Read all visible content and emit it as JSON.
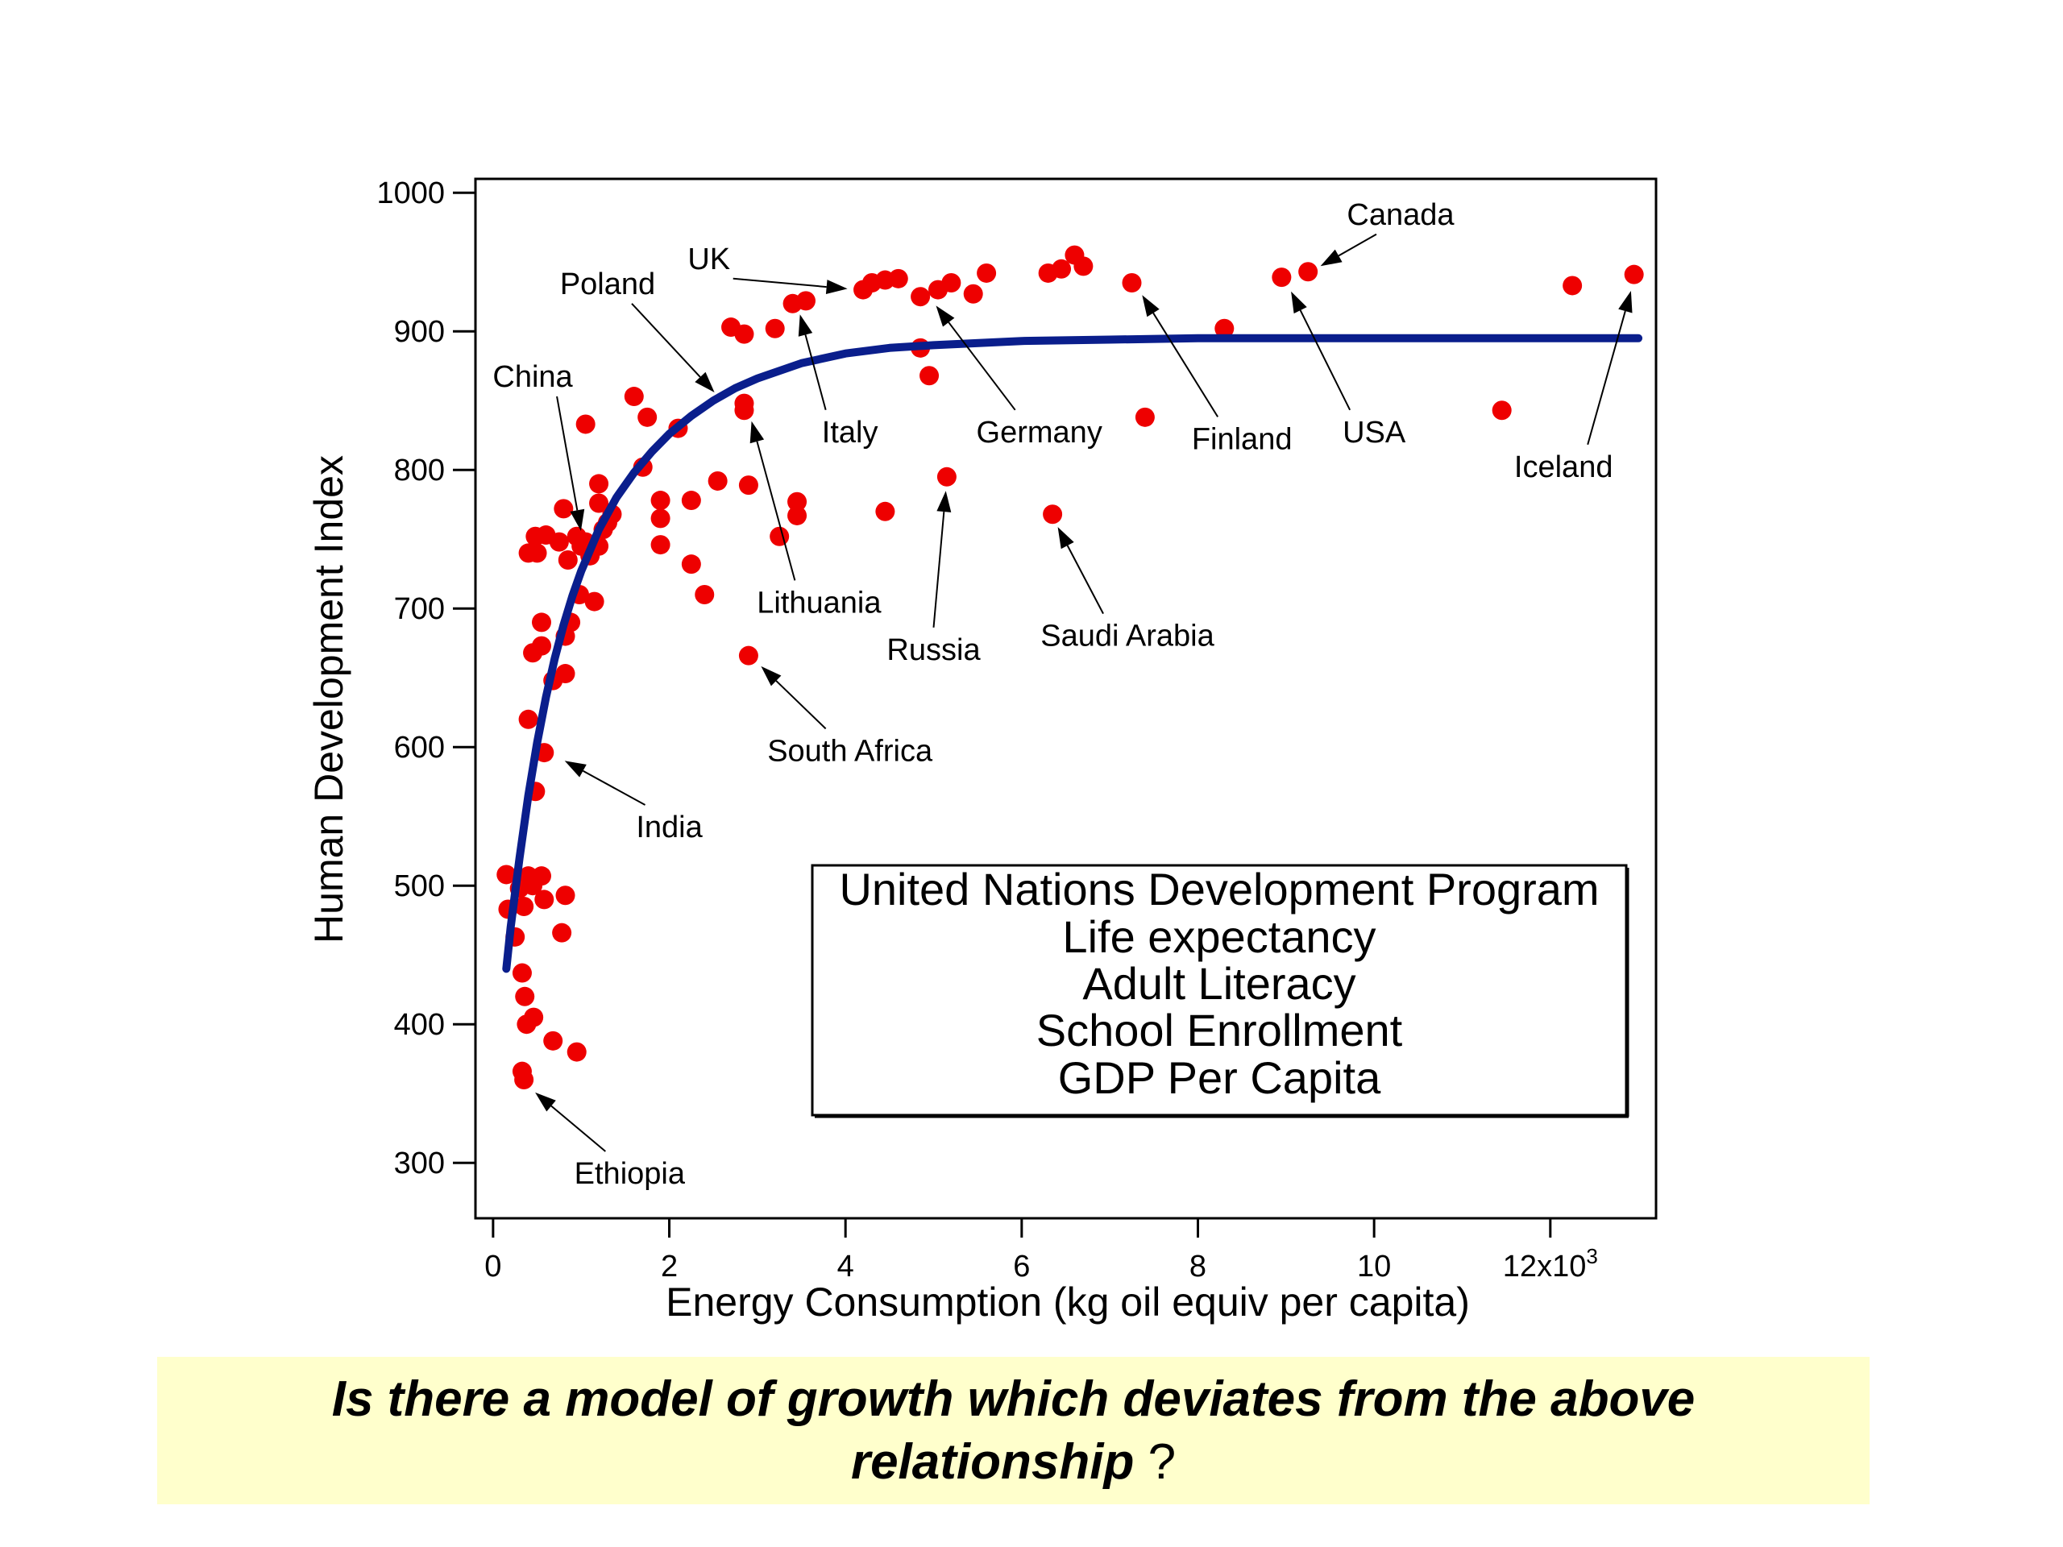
{
  "chart_data": {
    "type": "scatter",
    "xlabel": "Energy Consumption (kg oil equiv per capita)",
    "ylabel": "Human Development Index",
    "xlim": [
      -0.2,
      13.2
    ],
    "ylim": [
      260,
      1010
    ],
    "x_ticks": [
      {
        "value": 0,
        "label": "0"
      },
      {
        "value": 2,
        "label": "2"
      },
      {
        "value": 4,
        "label": "4"
      },
      {
        "value": 6,
        "label": "6"
      },
      {
        "value": 8,
        "label": "8"
      },
      {
        "value": 10,
        "label": "10"
      },
      {
        "value": 12,
        "label": "12x10",
        "exponent": "3"
      }
    ],
    "y_ticks": [
      300,
      400,
      500,
      600,
      700,
      800,
      900,
      1000
    ],
    "point_color": "#ee0000",
    "curve_color": "#0a1e8c",
    "points": [
      [
        0.15,
        508
      ],
      [
        0.17,
        483
      ],
      [
        0.25,
        463
      ],
      [
        0.3,
        498
      ],
      [
        0.35,
        485
      ],
      [
        0.4,
        507
      ],
      [
        0.45,
        500
      ],
      [
        0.55,
        507
      ],
      [
        0.58,
        490
      ],
      [
        0.82,
        493
      ],
      [
        0.78,
        466
      ],
      [
        0.33,
        437
      ],
      [
        0.36,
        420
      ],
      [
        0.38,
        400
      ],
      [
        0.46,
        405
      ],
      [
        0.68,
        388
      ],
      [
        0.95,
        380
      ],
      [
        0.33,
        366
      ],
      [
        0.35,
        360
      ],
      [
        0.4,
        620
      ],
      [
        0.48,
        568
      ],
      [
        0.58,
        596
      ],
      [
        0.45,
        668
      ],
      [
        0.55,
        673
      ],
      [
        0.55,
        690
      ],
      [
        0.68,
        648
      ],
      [
        0.82,
        653
      ],
      [
        0.82,
        680
      ],
      [
        0.88,
        690
      ],
      [
        0.4,
        740
      ],
      [
        0.48,
        752
      ],
      [
        0.5,
        740
      ],
      [
        0.6,
        753
      ],
      [
        0.75,
        748
      ],
      [
        0.8,
        772
      ],
      [
        0.95,
        752
      ],
      [
        1.0,
        745
      ],
      [
        1.05,
        748
      ],
      [
        1.1,
        738
      ],
      [
        1.2,
        745
      ],
      [
        1.25,
        757
      ],
      [
        1.3,
        762
      ],
      [
        1.35,
        768
      ],
      [
        1.2,
        776
      ],
      [
        1.2,
        790
      ],
      [
        0.85,
        735
      ],
      [
        0.98,
        710
      ],
      [
        1.15,
        705
      ],
      [
        1.05,
        833
      ],
      [
        1.6,
        853
      ],
      [
        1.75,
        838
      ],
      [
        1.7,
        802
      ],
      [
        1.9,
        778
      ],
      [
        1.9,
        765
      ],
      [
        1.9,
        746
      ],
      [
        2.1,
        830
      ],
      [
        2.25,
        778
      ],
      [
        2.25,
        732
      ],
      [
        2.4,
        710
      ],
      [
        2.55,
        792
      ],
      [
        2.7,
        903
      ],
      [
        2.85,
        898
      ],
      [
        3.2,
        902
      ],
      [
        3.4,
        920
      ],
      [
        3.55,
        922
      ],
      [
        2.85,
        848
      ],
      [
        2.85,
        843
      ],
      [
        2.9,
        789
      ],
      [
        3.25,
        752
      ],
      [
        3.45,
        777
      ],
      [
        3.45,
        767
      ],
      [
        2.9,
        666
      ],
      [
        4.2,
        930
      ],
      [
        4.3,
        935
      ],
      [
        4.45,
        937
      ],
      [
        4.6,
        938
      ],
      [
        4.85,
        925
      ],
      [
        5.05,
        930
      ],
      [
        5.2,
        935
      ],
      [
        5.45,
        927
      ],
      [
        5.6,
        942
      ],
      [
        4.85,
        888
      ],
      [
        4.95,
        868
      ],
      [
        4.45,
        770
      ],
      [
        5.15,
        795
      ],
      [
        6.3,
        942
      ],
      [
        6.45,
        945
      ],
      [
        6.6,
        955
      ],
      [
        6.7,
        947
      ],
      [
        7.25,
        935
      ],
      [
        7.4,
        838
      ],
      [
        8.3,
        902
      ],
      [
        6.35,
        768
      ],
      [
        8.95,
        939
      ],
      [
        9.25,
        943
      ],
      [
        11.45,
        843
      ],
      [
        12.25,
        933
      ],
      [
        12.95,
        941
      ]
    ],
    "curve": [
      [
        0.15,
        440
      ],
      [
        0.2,
        470
      ],
      [
        0.3,
        520
      ],
      [
        0.4,
        565
      ],
      [
        0.5,
        603
      ],
      [
        0.6,
        636
      ],
      [
        0.7,
        664
      ],
      [
        0.8,
        688
      ],
      [
        0.9,
        709
      ],
      [
        1.0,
        727
      ],
      [
        1.2,
        757
      ],
      [
        1.4,
        780
      ],
      [
        1.6,
        798
      ],
      [
        1.8,
        813
      ],
      [
        2.0,
        826
      ],
      [
        2.25,
        839
      ],
      [
        2.5,
        850
      ],
      [
        2.75,
        859
      ],
      [
        3.0,
        866
      ],
      [
        3.5,
        877
      ],
      [
        4.0,
        884
      ],
      [
        4.5,
        888
      ],
      [
        5.0,
        890
      ],
      [
        6.0,
        893
      ],
      [
        7.0,
        894
      ],
      [
        8.0,
        895
      ],
      [
        9.0,
        895
      ],
      [
        10.0,
        895
      ],
      [
        11.0,
        895
      ],
      [
        12.0,
        895
      ],
      [
        13.0,
        895
      ]
    ],
    "annotations": [
      {
        "label": "Canada",
        "target": [
          9.28,
          943
        ],
        "text_at": [
          10.3,
          977
        ],
        "anchor": "middle"
      },
      {
        "label": "UK",
        "target": [
          4.15,
          930
        ],
        "text_at": [
          2.45,
          945
        ],
        "anchor": "middle"
      },
      {
        "label": "Poland",
        "target": [
          2.6,
          850
        ],
        "text_at": [
          1.3,
          927
        ],
        "anchor": "middle"
      },
      {
        "label": "China",
        "target": [
          1.02,
          748
        ],
        "text_at": [
          0.45,
          860
        ],
        "anchor": "middle"
      },
      {
        "label": "Italy",
        "target": [
          3.45,
          920
        ],
        "text_at": [
          4.05,
          820
        ],
        "anchor": "middle"
      },
      {
        "label": "Germany",
        "target": [
          4.95,
          925
        ],
        "text_at": [
          6.2,
          820
        ],
        "anchor": "middle"
      },
      {
        "label": "Finland",
        "target": [
          7.3,
          933
        ],
        "text_at": [
          8.5,
          815
        ],
        "anchor": "middle"
      },
      {
        "label": "USA",
        "target": [
          9.0,
          936
        ],
        "text_at": [
          10.0,
          820
        ],
        "anchor": "middle"
      },
      {
        "label": "Iceland",
        "target": [
          12.95,
          937
        ],
        "text_at": [
          12.15,
          795
        ],
        "anchor": "middle"
      },
      {
        "label": "Lithuania",
        "target": [
          2.9,
          843
        ],
        "text_at": [
          3.7,
          697
        ],
        "anchor": "middle"
      },
      {
        "label": "Russia",
        "target": [
          5.15,
          793
        ],
        "text_at": [
          5.0,
          663
        ],
        "anchor": "middle"
      },
      {
        "label": "Saudi Arabia",
        "target": [
          6.35,
          766
        ],
        "text_at": [
          7.2,
          673
        ],
        "anchor": "middle"
      },
      {
        "label": "South Africa",
        "target": [
          2.95,
          664
        ],
        "text_at": [
          4.05,
          590
        ],
        "anchor": "middle"
      },
      {
        "label": "India",
        "target": [
          0.7,
          594
        ],
        "text_at": [
          2.0,
          535
        ],
        "anchor": "middle"
      },
      {
        "label": "Ethiopia",
        "target": [
          0.38,
          356
        ],
        "text_at": [
          1.55,
          285
        ],
        "anchor": "middle"
      }
    ],
    "legend_box": {
      "placement": "bottom-right",
      "lines": [
        "United Nations Development Program",
        "Life expectancy",
        "Adult Literacy",
        "School Enrollment",
        "GDP Per Capita"
      ]
    }
  },
  "caption": {
    "line1": "Is there a model of growth which deviates from the above",
    "line2": "relationship",
    "question_mark": "?",
    "background": "#ffffcc"
  }
}
